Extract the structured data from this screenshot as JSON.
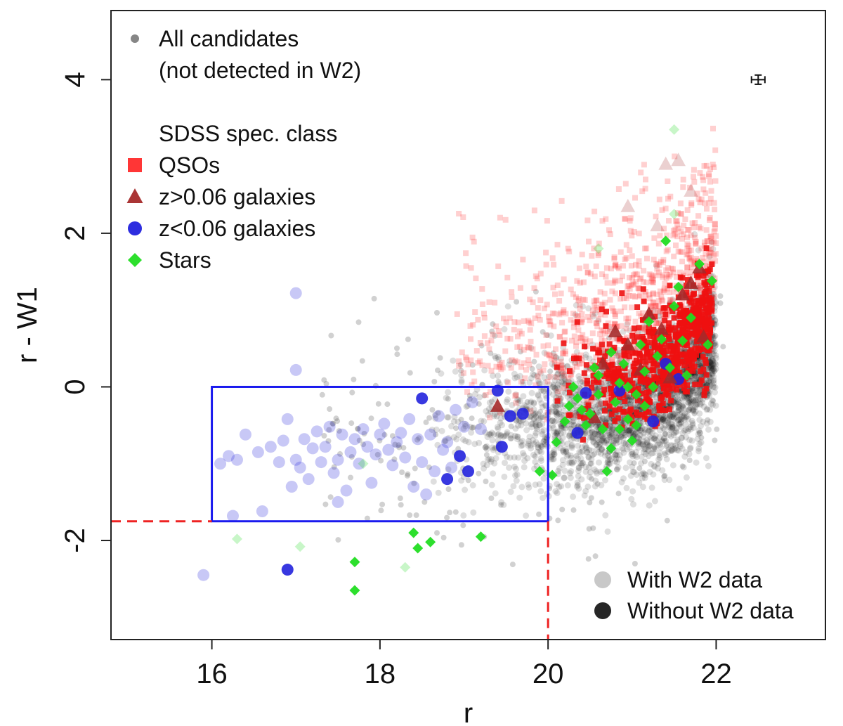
{
  "chart_data": {
    "type": "scatter",
    "xlabel": "r",
    "ylabel": "r - W1",
    "xlim": [
      14.8,
      23.3
    ],
    "ylim": [
      -3.29,
      4.9
    ],
    "x_ticks": [
      16,
      18,
      20,
      22
    ],
    "y_ticks": [
      -2,
      0,
      2,
      4
    ],
    "grid": false,
    "legend_top": {
      "placement": "top-left",
      "entries": [
        {
          "label": "All candidates",
          "symbol": "circle",
          "color": "#7f7f7f"
        },
        {
          "label": "(not detected in W2)",
          "symbol": "none"
        },
        {
          "label": "SDSS spec. class",
          "symbol": "none"
        },
        {
          "label": "QSOs",
          "symbol": "square",
          "color": "#ff2b2b"
        },
        {
          "label": "z>0.06 galaxies",
          "symbol": "triangle",
          "color": "#a52a2a"
        },
        {
          "label": "z<0.06 galaxies",
          "symbol": "circle",
          "color": "#2222dd"
        },
        {
          "label": "Stars",
          "symbol": "diamond",
          "color": "#22dd22"
        }
      ]
    },
    "legend_bottom": {
      "placement": "bottom-right",
      "entries": [
        {
          "label": "With W2 data",
          "symbol": "circle",
          "color": "#c8c8c8"
        },
        {
          "label": "Without W2 data",
          "symbol": "circle",
          "color": "#262626"
        }
      ]
    },
    "error_bar": {
      "x": 22.5,
      "y": 4.0,
      "xerr": 0.08,
      "yerr": 0.06
    },
    "selection_box": {
      "x": [
        16,
        20
      ],
      "y": [
        -1.75,
        0
      ],
      "color": "#1a1aee"
    },
    "cut_lines": {
      "r_max": 20,
      "color_min": -1.75,
      "color": "#ee2222"
    },
    "series": [
      {
        "name": "z<0.06 galaxies",
        "marker": "circle",
        "color": "#2222dd",
        "alpha": 0.25,
        "w2": true,
        "points": [
          [
            15.9,
            -2.45
          ],
          [
            16.1,
            -1.0
          ],
          [
            16.2,
            -0.9
          ],
          [
            16.25,
            -1.68
          ],
          [
            16.3,
            -0.95
          ],
          [
            16.4,
            -0.62
          ],
          [
            16.55,
            -0.85
          ],
          [
            16.6,
            -1.62
          ],
          [
            16.7,
            -0.78
          ],
          [
            16.8,
            -0.98
          ],
          [
            16.85,
            -0.7
          ],
          [
            16.9,
            -0.42
          ],
          [
            17.0,
            1.22
          ],
          [
            17.0,
            0.22
          ],
          [
            17.0,
            -0.95
          ],
          [
            17.05,
            -1.05
          ],
          [
            17.1,
            -0.68
          ],
          [
            17.15,
            -1.2
          ],
          [
            17.2,
            -0.8
          ],
          [
            17.25,
            -0.58
          ],
          [
            17.3,
            -0.98
          ],
          [
            17.35,
            -0.78
          ],
          [
            17.4,
            -0.52
          ],
          [
            17.45,
            -1.12
          ],
          [
            17.5,
            -0.95
          ],
          [
            17.55,
            -0.62
          ],
          [
            17.6,
            -1.35
          ],
          [
            17.65,
            -0.85
          ],
          [
            17.7,
            -0.68
          ],
          [
            17.75,
            -1.0
          ],
          [
            17.8,
            -0.55
          ],
          [
            17.85,
            -0.78
          ],
          [
            17.9,
            -1.25
          ],
          [
            17.95,
            -0.88
          ],
          [
            18.0,
            -0.62
          ],
          [
            18.05,
            -0.48
          ],
          [
            18.1,
            -0.82
          ],
          [
            18.15,
            -1.02
          ],
          [
            18.2,
            -0.72
          ],
          [
            18.25,
            -0.6
          ],
          [
            18.3,
            -0.92
          ],
          [
            18.35,
            -0.42
          ],
          [
            18.4,
            -1.3
          ],
          [
            18.45,
            -0.68
          ],
          [
            18.5,
            -0.98
          ],
          [
            18.6,
            -0.62
          ],
          [
            18.65,
            -1.1
          ],
          [
            18.7,
            -0.38
          ],
          [
            18.75,
            -0.82
          ],
          [
            18.8,
            -0.72
          ],
          [
            18.85,
            -1.05
          ],
          [
            18.9,
            -0.3
          ],
          [
            19.0,
            -0.52
          ],
          [
            19.1,
            -0.2
          ],
          [
            19.2,
            -0.55
          ],
          [
            17.5,
            -1.5
          ],
          [
            16.95,
            -1.3
          ],
          [
            18.55,
            -1.4
          ]
        ]
      },
      {
        "name": "z<0.06 galaxies",
        "marker": "circle",
        "color": "#2222dd",
        "alpha": 0.9,
        "w2": false,
        "points": [
          [
            16.9,
            -2.38
          ],
          [
            18.5,
            -0.15
          ],
          [
            18.8,
            -1.2
          ],
          [
            18.95,
            -0.9
          ],
          [
            19.05,
            -1.1
          ],
          [
            19.4,
            -0.05
          ],
          [
            19.45,
            -0.78
          ],
          [
            19.55,
            -0.38
          ],
          [
            19.7,
            -0.35
          ],
          [
            20.35,
            -0.6
          ],
          [
            20.45,
            -0.08
          ],
          [
            20.85,
            -0.05
          ],
          [
            21.25,
            -0.45
          ],
          [
            21.4,
            0.3
          ],
          [
            21.55,
            0.1
          ]
        ]
      },
      {
        "name": "z>0.06 galaxies",
        "marker": "triangle",
        "color": "#a52a2a",
        "alpha": 0.9,
        "w2": false,
        "points": [
          [
            19.4,
            -0.25
          ],
          [
            20.55,
            -0.4
          ],
          [
            20.65,
            0.3
          ],
          [
            20.8,
            0.72
          ],
          [
            20.95,
            0.55
          ],
          [
            21.1,
            0.22
          ],
          [
            21.2,
            0.95
          ],
          [
            21.35,
            0.75
          ],
          [
            21.45,
            0.12
          ],
          [
            21.6,
            1.2
          ],
          [
            21.7,
            1.35
          ],
          [
            21.8,
            1.55
          ],
          [
            21.85,
            0.65
          ]
        ]
      },
      {
        "name": "z>0.06 galaxies",
        "marker": "triangle",
        "color": "#a52a2a",
        "alpha": 0.22,
        "w2": true,
        "points": [
          [
            21.4,
            2.9
          ],
          [
            21.55,
            2.95
          ],
          [
            21.7,
            2.55
          ],
          [
            20.95,
            2.35
          ],
          [
            21.3,
            2.1
          ]
        ]
      },
      {
        "name": "Stars",
        "marker": "diamond",
        "color": "#22dd22",
        "alpha": 0.95,
        "w2": false,
        "points": [
          [
            17.7,
            -2.28
          ],
          [
            17.7,
            -2.65
          ],
          [
            18.4,
            -1.9
          ],
          [
            18.45,
            -2.1
          ],
          [
            18.6,
            -2.02
          ],
          [
            19.2,
            -1.95
          ],
          [
            19.9,
            -1.1
          ],
          [
            20.05,
            -1.15
          ],
          [
            20.1,
            -0.72
          ],
          [
            20.2,
            -0.45
          ],
          [
            20.25,
            -0.25
          ],
          [
            20.3,
            0.0
          ],
          [
            20.35,
            -0.15
          ],
          [
            20.45,
            -0.5
          ],
          [
            20.5,
            -0.35
          ],
          [
            20.6,
            0.15
          ],
          [
            20.65,
            -0.55
          ],
          [
            20.7,
            -1.1
          ],
          [
            20.75,
            -0.8
          ],
          [
            20.8,
            -0.2
          ],
          [
            20.85,
            0.05
          ],
          [
            20.9,
            0.3
          ],
          [
            20.95,
            -0.42
          ],
          [
            21.0,
            -0.7
          ],
          [
            21.05,
            -0.1
          ],
          [
            21.1,
            0.55
          ],
          [
            21.15,
            -0.25
          ],
          [
            21.2,
            0.85
          ],
          [
            21.25,
            0.0
          ],
          [
            21.3,
            0.4
          ],
          [
            21.35,
            0.62
          ],
          [
            21.4,
            1.9
          ],
          [
            21.45,
            0.25
          ],
          [
            21.5,
            1.05
          ],
          [
            21.55,
            1.3
          ],
          [
            21.6,
            0.6
          ],
          [
            21.65,
            0.15
          ],
          [
            21.7,
            0.9
          ],
          [
            21.8,
            1.6
          ],
          [
            21.9,
            0.55
          ],
          [
            21.95,
            1.38
          ],
          [
            20.55,
            0.25
          ],
          [
            20.75,
            0.45
          ],
          [
            20.95,
            0.0
          ],
          [
            21.15,
            0.2
          ],
          [
            20.4,
            -0.3
          ],
          [
            20.6,
            -0.1
          ],
          [
            20.85,
            -0.55
          ],
          [
            21.05,
            -0.5
          ]
        ]
      },
      {
        "name": "Stars",
        "marker": "diamond",
        "color": "#22dd22",
        "alpha": 0.25,
        "w2": true,
        "points": [
          [
            16.3,
            -1.98
          ],
          [
            17.05,
            -2.08
          ],
          [
            17.8,
            -1.0
          ],
          [
            18.3,
            -2.35
          ],
          [
            21.5,
            3.35
          ],
          [
            21.5,
            2.25
          ],
          [
            20.6,
            1.8
          ]
        ]
      }
    ]
  }
}
